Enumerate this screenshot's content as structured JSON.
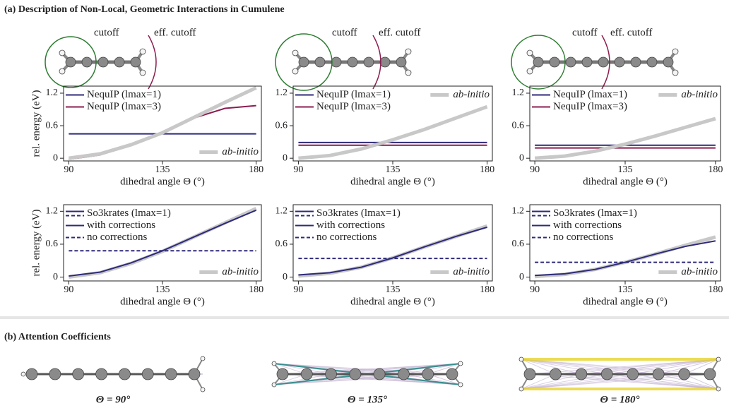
{
  "section_a": {
    "title": "(a) Description of Non-Local, Geometric Interactions in Cumulene",
    "molecules": [
      {
        "cutoff": "cutoff",
        "eff_cutoff": "eff. cutoff"
      },
      {
        "cutoff": "cutoff",
        "eff_cutoff": "eff. cutoff"
      },
      {
        "cutoff": "cutoff",
        "eff_cutoff": "eff. cutoff"
      }
    ]
  },
  "chart_data": [
    {
      "type": "line",
      "x": [
        90,
        105,
        120,
        135,
        150,
        165,
        180
      ],
      "xlim": [
        87.5,
        182.5
      ],
      "xticks": [
        90,
        135,
        180
      ],
      "ylim": [
        -0.05,
        1.33
      ],
      "yticks": [
        0,
        0.6,
        1.2
      ],
      "xlabel": "dihedral angle Θ (°)",
      "ylabel": "rel. energy (eV)",
      "legend": "upper left",
      "series": [
        {
          "name": "NequIP (lmax=1)",
          "color": "#2e2a7a",
          "values": [
            0.45,
            0.45,
            0.45,
            0.45,
            0.45,
            0.45,
            0.45
          ]
        },
        {
          "name": "NequIP (lmax=3)",
          "color": "#8b1d4f",
          "values": [
            -0.02,
            0.06,
            0.24,
            0.48,
            0.74,
            0.92,
            0.97
          ]
        },
        {
          "name": "ab-initio",
          "color": "#c8c8c8",
          "linewidth": 5,
          "legend": "lower right",
          "values": [
            0,
            0.08,
            0.25,
            0.47,
            0.75,
            1.03,
            1.3
          ]
        }
      ]
    },
    {
      "type": "line",
      "x": [
        90,
        105,
        120,
        135,
        150,
        165,
        180
      ],
      "xlim": [
        87.5,
        182.5
      ],
      "xticks": [
        90,
        135,
        180
      ],
      "ylim": [
        -0.05,
        1.33
      ],
      "yticks": [
        0,
        0.6,
        1.2
      ],
      "xlabel": "dihedral angle Θ (°)",
      "legend": "upper left",
      "series": [
        {
          "name": "NequIP (lmax=1)",
          "color": "#2e2a7a",
          "values": [
            0.29,
            0.29,
            0.29,
            0.29,
            0.29,
            0.29,
            0.29
          ]
        },
        {
          "name": "NequIP (lmax=3)",
          "color": "#8b1d4f",
          "values": [
            0.24,
            0.24,
            0.24,
            0.24,
            0.24,
            0.24,
            0.24
          ]
        },
        {
          "name": "ab-initio",
          "color": "#c8c8c8",
          "linewidth": 5,
          "legend": "upper right",
          "values": [
            0,
            0.05,
            0.17,
            0.34,
            0.53,
            0.74,
            0.95
          ]
        }
      ]
    },
    {
      "type": "line",
      "x": [
        90,
        105,
        120,
        135,
        150,
        165,
        180
      ],
      "xlim": [
        87.5,
        182.5
      ],
      "xticks": [
        90,
        135,
        180
      ],
      "ylim": [
        -0.05,
        1.33
      ],
      "yticks": [
        0,
        0.6,
        1.2
      ],
      "xlabel": "dihedral angle Θ (°)",
      "legend": "upper left",
      "series": [
        {
          "name": "NequIP (lmax=1)",
          "color": "#2e2a7a",
          "values": [
            0.24,
            0.24,
            0.24,
            0.24,
            0.24,
            0.24,
            0.24
          ]
        },
        {
          "name": "NequIP (lmax=3)",
          "color": "#8b1d4f",
          "values": [
            0.19,
            0.19,
            0.19,
            0.19,
            0.19,
            0.19,
            0.19
          ]
        },
        {
          "name": "ab-initio",
          "color": "#c8c8c8",
          "linewidth": 5,
          "legend": "upper right",
          "values": [
            0,
            0.04,
            0.13,
            0.26,
            0.41,
            0.57,
            0.73
          ]
        }
      ]
    },
    {
      "type": "line",
      "x": [
        90,
        105,
        120,
        135,
        150,
        165,
        180
      ],
      "xlim": [
        87.5,
        182.5
      ],
      "xticks": [
        90,
        135,
        180
      ],
      "ylim": [
        -0.07,
        1.32
      ],
      "yticks": [
        0,
        0.6,
        1.2
      ],
      "xlabel": "dihedral angle Θ (°)",
      "ylabel": "rel. energy (eV)",
      "legend": "upper left",
      "legend_title": "So3krates (lmax=1)",
      "series": [
        {
          "name": "ab-initio",
          "color": "#c8c8c8",
          "linewidth": 5,
          "legend": "lower right",
          "values": [
            0,
            0.08,
            0.25,
            0.47,
            0.73,
            0.99,
            1.25
          ]
        },
        {
          "name": "with corrections",
          "color": "#2e2a7a",
          "values": [
            0.02,
            0.09,
            0.26,
            0.48,
            0.73,
            0.98,
            1.22
          ]
        },
        {
          "name": "no corrections",
          "color": "#2e2a7a",
          "linestyle": "dashed",
          "values": [
            0.48,
            0.48,
            0.48,
            0.48,
            0.48,
            0.48,
            0.48
          ]
        }
      ]
    },
    {
      "type": "line",
      "x": [
        90,
        105,
        120,
        135,
        150,
        165,
        180
      ],
      "xlim": [
        87.5,
        182.5
      ],
      "xticks": [
        90,
        135,
        180
      ],
      "ylim": [
        -0.07,
        1.32
      ],
      "yticks": [
        0,
        0.6,
        1.2
      ],
      "xlabel": "dihedral angle Θ (°)",
      "legend": "upper left",
      "legend_title": "So3krates (lmax=1)",
      "series": [
        {
          "name": "ab-initio",
          "color": "#c8c8c8",
          "linewidth": 5,
          "legend": "lower right",
          "values": [
            0.02,
            0.07,
            0.18,
            0.35,
            0.55,
            0.74,
            0.93
          ]
        },
        {
          "name": "with corrections",
          "color": "#2e2a7a",
          "values": [
            0.04,
            0.08,
            0.18,
            0.35,
            0.55,
            0.74,
            0.91
          ]
        },
        {
          "name": "no corrections",
          "color": "#2e2a7a",
          "linestyle": "dashed",
          "values": [
            0.34,
            0.34,
            0.34,
            0.34,
            0.34,
            0.34,
            0.34
          ]
        }
      ]
    },
    {
      "type": "line",
      "x": [
        90,
        105,
        120,
        135,
        150,
        165,
        180
      ],
      "xlim": [
        87.5,
        182.5
      ],
      "xticks": [
        90,
        135,
        180
      ],
      "ylim": [
        -0.07,
        1.32
      ],
      "yticks": [
        0,
        0.6,
        1.2
      ],
      "xlabel": "dihedral angle Θ (°)",
      "legend": "upper left",
      "legend_title": "So3krates (lmax=1)",
      "series": [
        {
          "name": "ab-initio",
          "color": "#c8c8c8",
          "linewidth": 5,
          "legend": "lower right",
          "values": [
            0.01,
            0.05,
            0.14,
            0.27,
            0.42,
            0.58,
            0.73
          ]
        },
        {
          "name": "with corrections",
          "color": "#2e2a7a",
          "values": [
            0.03,
            0.06,
            0.14,
            0.27,
            0.42,
            0.56,
            0.66
          ]
        },
        {
          "name": "no corrections",
          "color": "#2e2a7a",
          "linestyle": "dashed",
          "values": [
            0.27,
            0.27,
            0.27,
            0.27,
            0.27,
            0.27,
            0.27
          ]
        }
      ]
    }
  ],
  "section_b": {
    "title": "(b) Attention Coefficients",
    "labels": [
      "Θ = 90°",
      "Θ = 135°",
      "Θ = 180°"
    ]
  }
}
